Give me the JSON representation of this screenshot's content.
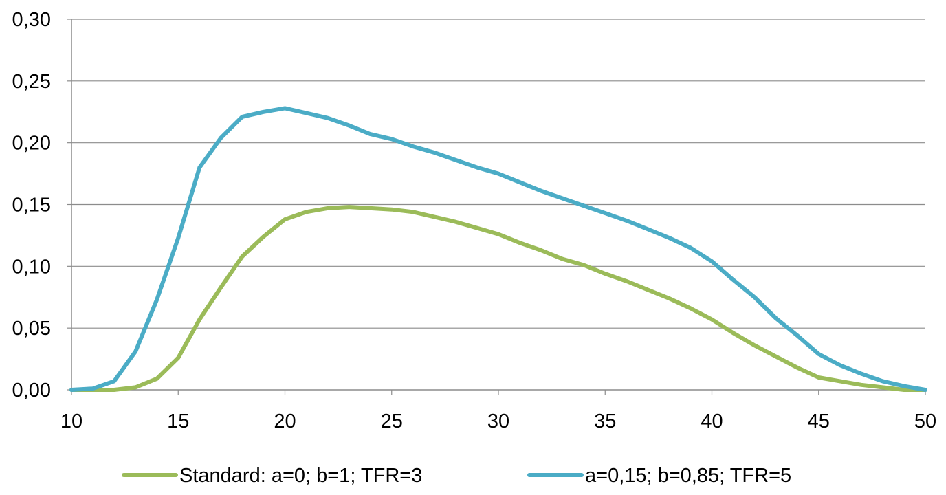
{
  "chart_data": {
    "type": "line",
    "title": "",
    "xlabel": "",
    "ylabel": "",
    "xlim": [
      10,
      50
    ],
    "ylim": [
      0,
      0.3
    ],
    "x_ticks": [
      "10",
      "15",
      "20",
      "25",
      "30",
      "35",
      "40",
      "45",
      "50"
    ],
    "y_ticks": [
      "0,00",
      "0,05",
      "0,10",
      "0,15",
      "0,20",
      "0,25",
      "0,30"
    ],
    "grid": true,
    "legend_position": "bottom",
    "x": [
      10,
      11,
      12,
      13,
      14,
      15,
      16,
      17,
      18,
      19,
      20,
      21,
      22,
      23,
      24,
      25,
      26,
      27,
      28,
      29,
      30,
      31,
      32,
      33,
      34,
      35,
      36,
      37,
      38,
      39,
      40,
      41,
      42,
      43,
      44,
      45,
      46,
      47,
      48,
      49,
      50
    ],
    "series": [
      {
        "name": "Standard: a=0; b=1; TFR=3",
        "color": "#9bbb59",
        "values": [
          0,
          0,
          0,
          0.002,
          0.009,
          0.026,
          0.057,
          0.083,
          0.108,
          0.124,
          0.138,
          0.144,
          0.147,
          0.148,
          0.147,
          0.146,
          0.144,
          0.14,
          0.136,
          0.131,
          0.126,
          0.119,
          0.113,
          0.106,
          0.101,
          0.094,
          0.088,
          0.081,
          0.074,
          0.066,
          0.057,
          0.046,
          0.036,
          0.027,
          0.018,
          0.01,
          0.007,
          0.004,
          0.002,
          0,
          0
        ]
      },
      {
        "name": "a=0,15; b=0,85; TFR=5",
        "color": "#4bacc6",
        "values": [
          0,
          0.001,
          0.007,
          0.031,
          0.073,
          0.123,
          0.18,
          0.204,
          0.221,
          0.225,
          0.228,
          0.224,
          0.22,
          0.214,
          0.207,
          0.203,
          0.197,
          0.192,
          0.186,
          0.18,
          0.175,
          0.168,
          0.161,
          0.155,
          0.149,
          0.143,
          0.137,
          0.13,
          0.123,
          0.115,
          0.104,
          0.089,
          0.075,
          0.058,
          0.044,
          0.029,
          0.02,
          0.013,
          0.007,
          0.003,
          0
        ]
      }
    ]
  }
}
